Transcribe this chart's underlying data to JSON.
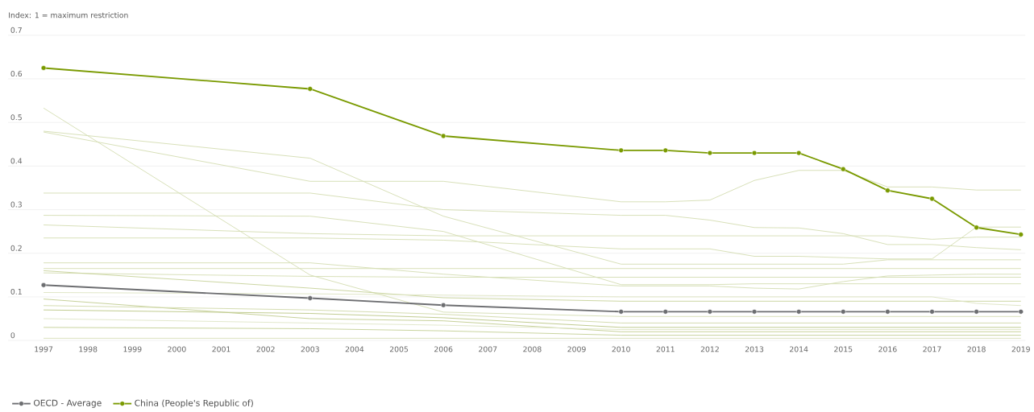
{
  "chart_data": {
    "type": "line",
    "ylabel": "Index: 1 = maximum restriction",
    "x": [
      1997,
      2003,
      2006,
      2010,
      2011,
      2012,
      2013,
      2014,
      2015,
      2016,
      2017,
      2018,
      2019
    ],
    "xlim": [
      1996.2,
      2019.1
    ],
    "xticks": [
      1997,
      1998,
      1999,
      2000,
      2001,
      2002,
      2003,
      2004,
      2005,
      2006,
      2007,
      2008,
      2009,
      2010,
      2011,
      2012,
      2013,
      2014,
      2015,
      2016,
      2017,
      2018,
      2019
    ],
    "ylim": [
      0,
      0.7
    ],
    "yticks": [
      0,
      0.1,
      0.2,
      0.3,
      0.4,
      0.5,
      0.6,
      0.7
    ],
    "grid": "y",
    "legend": "bottom left",
    "marker": "circle",
    "series": [
      {
        "color": "#d5ddb3",
        "marker": "none",
        "values": [
          0.533,
          0.15,
          0.065,
          0.055,
          0.055,
          0.055,
          0.055,
          0.055,
          0.055,
          0.055,
          0.055,
          0.055,
          0.055
        ]
      },
      {
        "color": "#d5ddb3",
        "marker": "none",
        "values": [
          0.48,
          0.418,
          0.285,
          0.175,
          0.175,
          0.175,
          0.175,
          0.175,
          0.175,
          0.185,
          0.185,
          0.185,
          0.185
        ]
      },
      {
        "color": "#d5ddb3",
        "marker": "none",
        "values": [
          0.478,
          0.365,
          0.365,
          0.318,
          0.318,
          0.322,
          0.367,
          0.39,
          0.39,
          0.352,
          0.352,
          0.345,
          0.345
        ]
      },
      {
        "color": "#d5ddb3",
        "marker": "none",
        "values": [
          0.338,
          0.338,
          0.3,
          0.287,
          0.287,
          0.276,
          0.259,
          0.258,
          0.245,
          0.22,
          0.22,
          0.213,
          0.208
        ]
      },
      {
        "color": "#d5ddb3",
        "marker": "none",
        "values": [
          0.287,
          0.285,
          0.25,
          0.128,
          0.128,
          0.128,
          0.13,
          0.13,
          0.13,
          0.13,
          0.13,
          0.13,
          0.13
        ]
      },
      {
        "color": "#d5ddb3",
        "marker": "none",
        "values": [
          0.265,
          0.245,
          0.24,
          0.24,
          0.24,
          0.24,
          0.24,
          0.24,
          0.24,
          0.24,
          0.232,
          0.237,
          0.237
        ]
      },
      {
        "color": "#d5ddb3",
        "marker": "none",
        "values": [
          0.235,
          0.235,
          0.23,
          0.21,
          0.21,
          0.21,
          0.193,
          0.193,
          0.19,
          0.187,
          0.187,
          0.26,
          0.26
        ]
      },
      {
        "color": "#d5ddb3",
        "marker": "none",
        "values": [
          0.178,
          0.178,
          0.152,
          0.125,
          0.125,
          0.125,
          0.12,
          0.118,
          0.135,
          0.148,
          0.15,
          0.152,
          0.152
        ]
      },
      {
        "color": "#d5ddb3",
        "marker": "none",
        "values": [
          0.165,
          0.165,
          0.165,
          0.165,
          0.165,
          0.165,
          0.165,
          0.165,
          0.165,
          0.165,
          0.165,
          0.165,
          0.165
        ]
      },
      {
        "color": "#d5ddb3",
        "marker": "none",
        "values": [
          0.155,
          0.147,
          0.145,
          0.145,
          0.145,
          0.145,
          0.145,
          0.145,
          0.145,
          0.145,
          0.145,
          0.145,
          0.145
        ]
      },
      {
        "color": "#c8d39c",
        "marker": "none",
        "values": [
          0.16,
          0.12,
          0.098,
          0.09,
          0.09,
          0.09,
          0.09,
          0.09,
          0.09,
          0.09,
          0.09,
          0.09,
          0.09
        ]
      },
      {
        "color": "#dde4c2",
        "marker": "none",
        "values": [
          0.11,
          0.107,
          0.104,
          0.1,
          0.1,
          0.1,
          0.1,
          0.1,
          0.1,
          0.1,
          0.1,
          0.085,
          0.08
        ]
      },
      {
        "color": "#c2cd92",
        "marker": "none",
        "values": [
          0.095,
          0.05,
          0.045,
          0.02,
          0.02,
          0.02,
          0.02,
          0.02,
          0.02,
          0.02,
          0.02,
          0.02,
          0.02
        ]
      },
      {
        "color": "#d0d9aa",
        "marker": "none",
        "values": [
          0.08,
          0.07,
          0.06,
          0.04,
          0.04,
          0.04,
          0.04,
          0.04,
          0.04,
          0.04,
          0.04,
          0.04,
          0.04
        ]
      },
      {
        "color": "#bcc888",
        "marker": "none",
        "values": [
          0.07,
          0.062,
          0.052,
          0.03,
          0.03,
          0.03,
          0.03,
          0.03,
          0.03,
          0.03,
          0.03,
          0.03,
          0.03
        ]
      },
      {
        "color": "#e0e6c8",
        "marker": "none",
        "values": [
          0.05,
          0.04,
          0.035,
          0.025,
          0.025,
          0.025,
          0.025,
          0.025,
          0.025,
          0.025,
          0.025,
          0.025,
          0.025
        ]
      },
      {
        "color": "#c5d097",
        "marker": "none",
        "values": [
          0.03,
          0.027,
          0.022,
          0.012,
          0.012,
          0.012,
          0.012,
          0.012,
          0.012,
          0.012,
          0.012,
          0.012,
          0.012
        ]
      },
      {
        "color": "#d8dfba",
        "marker": "none",
        "values": [
          0.005,
          0.005,
          0.005,
          0.005,
          0.005,
          0.005,
          0.005,
          0.005,
          0.005,
          0.005,
          0.005,
          0.005,
          0.005
        ]
      },
      {
        "name": "OECD - Average",
        "color": "#6d6e71",
        "values": [
          0.127,
          0.097,
          0.081,
          0.066,
          0.066,
          0.066,
          0.066,
          0.066,
          0.066,
          0.066,
          0.066,
          0.066,
          0.066
        ]
      },
      {
        "name": "China (People's Republic of)",
        "color": "#7a9a01",
        "values": [
          0.625,
          0.577,
          0.469,
          0.436,
          0.436,
          0.43,
          0.43,
          0.43,
          0.393,
          0.344,
          0.325,
          0.259,
          0.243
        ]
      }
    ]
  }
}
